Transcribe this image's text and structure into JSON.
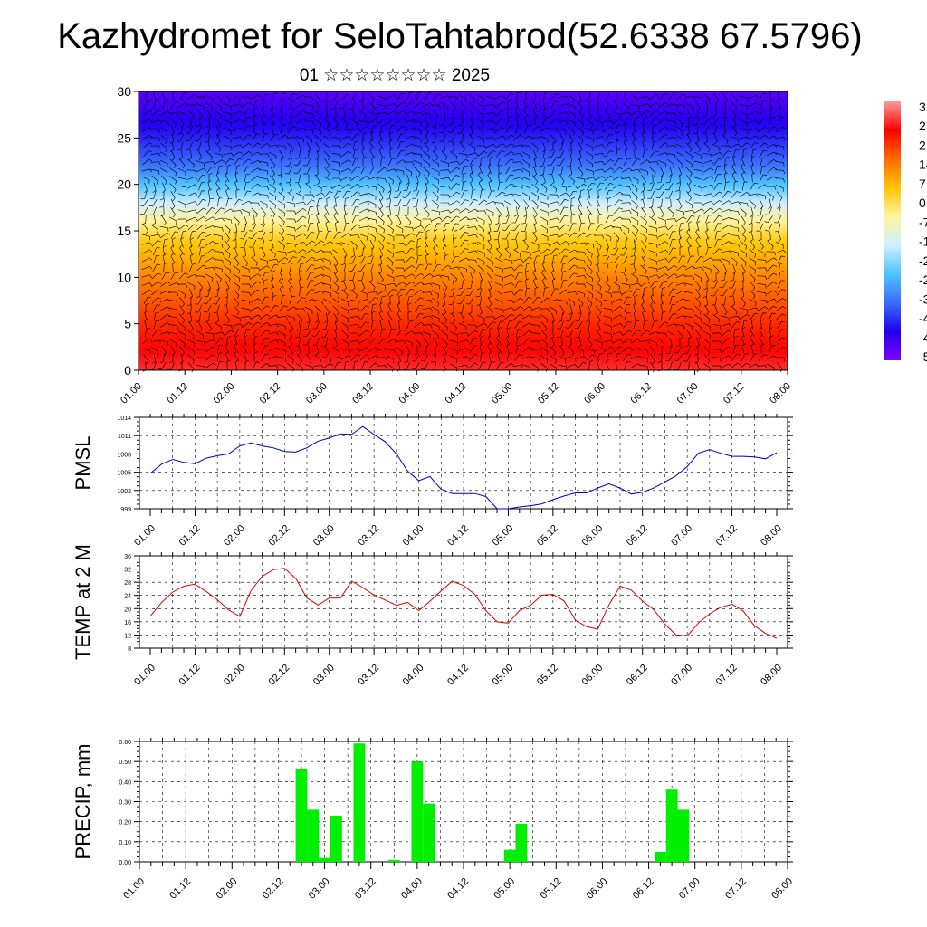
{
  "header": {
    "title": "Kazhydromet for SeloTahtabrod(52.6338 67.5796)",
    "subtitle": "01 ☆☆☆☆☆☆☆☆ 2025"
  },
  "colors": {
    "pmsl_line": "#0000cc",
    "temp_line": "#dd0000",
    "precip_bar": "#00ee00",
    "wind_barb": "#000000",
    "temperature_palette": [
      "#ff9999",
      "#ff0000",
      "#ff6a00",
      "#ffc400",
      "#fff4a0",
      "#cfefff",
      "#4fc3ff",
      "#3a6cff",
      "#2000f0",
      "#8000ff"
    ]
  },
  "chart_data": [
    {
      "type": "heatmap",
      "description_kind": "vertical cross-section of temperature with wind barbs",
      "x_tick_labels": [
        "01.00",
        "01.12",
        "02.00",
        "02.12",
        "03.00",
        "03.12",
        "04.00",
        "04.12",
        "05.00",
        "05.12",
        "06.00",
        "06.12",
        "07.00",
        "07.12",
        "08.00"
      ],
      "y_ticks": [
        0,
        5,
        10,
        15,
        20,
        25,
        30
      ],
      "ylim": [
        0,
        30
      ],
      "colorbar_labels": [
        "3",
        "2",
        "2",
        "14",
        "7",
        "0",
        "-7",
        "-1",
        "-2",
        "-2",
        "-3",
        "-4",
        "-4",
        "-5"
      ],
      "colorbar_range": [
        -56,
        35
      ],
      "field_profile": [
        {
          "level": 0,
          "value": 28
        },
        {
          "level": 5,
          "value": 21
        },
        {
          "level": 10,
          "value": 12
        },
        {
          "level": 14,
          "value": 3
        },
        {
          "level": 16.5,
          "value": -7
        },
        {
          "level": 19,
          "value": -21
        },
        {
          "level": 22,
          "value": -35
        },
        {
          "level": 26,
          "value": -45
        },
        {
          "level": 30,
          "value": -52
        }
      ]
    },
    {
      "type": "line",
      "ylabel": "PMSL",
      "x_tick_labels": [
        "01.00",
        "01.12",
        "02.00",
        "02.12",
        "03.00",
        "03.12",
        "04.00",
        "04.12",
        "05.00",
        "05.12",
        "06.00",
        "06.12",
        "07.00",
        "07.12",
        "08.00"
      ],
      "y_ticks": [
        999,
        1002,
        1005,
        1008,
        1011,
        1014
      ],
      "ylim": [
        999,
        1014
      ],
      "grid": true,
      "series": [
        {
          "x": [
            0,
            3,
            6,
            9,
            12,
            15,
            18,
            21,
            24,
            27,
            30,
            33,
            36,
            39,
            42,
            45,
            48,
            51,
            54,
            57,
            60,
            63,
            66,
            69,
            72,
            75,
            78,
            81,
            84,
            87,
            90,
            93,
            96,
            99,
            102,
            105,
            108,
            111,
            114,
            117,
            120,
            123,
            126,
            129,
            132,
            135,
            138,
            141,
            144,
            147,
            150,
            153,
            156,
            159,
            162,
            165,
            168
          ],
          "values": [
            1004.8,
            1006.3,
            1007.1,
            1006.6,
            1006.4,
            1007.3,
            1007.7,
            1008.0,
            1009.3,
            1009.8,
            1009.3,
            1009.0,
            1008.4,
            1008.3,
            1009.0,
            1010.1,
            1010.6,
            1011.3,
            1011.2,
            1012.5,
            1011.2,
            1010.0,
            1008.0,
            1005.2,
            1003.6,
            1004.3,
            1002.2,
            1001.5,
            1001.5,
            1001.5,
            1001.0,
            999.0,
            999.0,
            999.3,
            999.5,
            999.8,
            1000.5,
            1001.1,
            1001.6,
            1001.6,
            1002.4,
            1003.1,
            1002.4,
            1001.4,
            1001.7,
            1002.4,
            1003.4,
            1004.4,
            1005.9,
            1008.1,
            1008.7,
            1008.1,
            1007.6,
            1007.6,
            1007.5,
            1007.2,
            1008.2
          ]
        }
      ]
    },
    {
      "type": "line",
      "ylabel": "TEMP at 2 M",
      "x_tick_labels": [
        "01.00",
        "01.12",
        "02.00",
        "02.12",
        "03.00",
        "03.12",
        "04.00",
        "04.12",
        "05.00",
        "05.12",
        "06.00",
        "06.12",
        "07.00",
        "07.12",
        "08.00"
      ],
      "y_ticks": [
        8,
        12,
        16,
        20,
        24,
        28,
        32,
        36
      ],
      "ylim": [
        8,
        36
      ],
      "grid": true,
      "series": [
        {
          "x": [
            0,
            3,
            6,
            9,
            12,
            15,
            18,
            21,
            24,
            27,
            30,
            33,
            36,
            39,
            42,
            45,
            48,
            51,
            54,
            57,
            60,
            63,
            66,
            69,
            72,
            75,
            78,
            81,
            84,
            87,
            90,
            93,
            96,
            99,
            102,
            105,
            108,
            111,
            114,
            117,
            120,
            123,
            126,
            129,
            132,
            135,
            138,
            141,
            144,
            147,
            150,
            153,
            156,
            159,
            162,
            165,
            168
          ],
          "values": [
            17.7,
            21.8,
            25.0,
            26.8,
            27.4,
            25.2,
            22.7,
            19.6,
            17.6,
            25.4,
            29.8,
            31.8,
            32.2,
            29.2,
            23.2,
            21.1,
            23.2,
            23.2,
            28.3,
            26.4,
            24.1,
            22.6,
            21.0,
            21.9,
            19.4,
            22.2,
            25.4,
            28.3,
            27.0,
            24.4,
            19.4,
            16.0,
            15.6,
            19.4,
            21.0,
            24.1,
            24.3,
            22.3,
            16.5,
            14.5,
            13.8,
            21.1,
            26.8,
            25.6,
            22.3,
            19.7,
            15.3,
            12.0,
            11.7,
            15.6,
            18.4,
            20.4,
            21.3,
            19.3,
            14.8,
            12.5,
            11.0
          ]
        }
      ]
    },
    {
      "type": "bar",
      "ylabel": "PRECIP, mm",
      "x_tick_labels": [
        "01.00",
        "01.12",
        "02.00",
        "02.12",
        "03.00",
        "03.12",
        "04.00",
        "04.12",
        "05.00",
        "05.12",
        "06.00",
        "06.12",
        "07.00",
        "07.12",
        "08.00"
      ],
      "y_tick_labels": [
        "0.00",
        "0.10",
        "0.20",
        "0.30",
        "0.40",
        "0.50",
        "0.60"
      ],
      "ylim": [
        0,
        0.6
      ],
      "grid": true,
      "bars": [
        {
          "x": 42,
          "value": 0.46
        },
        {
          "x": 45,
          "value": 0.26
        },
        {
          "x": 48,
          "value": 0.02
        },
        {
          "x": 51,
          "value": 0.23
        },
        {
          "x": 57,
          "value": 0.59
        },
        {
          "x": 66,
          "value": 0.01
        },
        {
          "x": 72,
          "value": 0.5
        },
        {
          "x": 75,
          "value": 0.29
        },
        {
          "x": 96,
          "value": 0.06
        },
        {
          "x": 99,
          "value": 0.19
        },
        {
          "x": 135,
          "value": 0.05
        },
        {
          "x": 138,
          "value": 0.36
        },
        {
          "x": 141,
          "value": 0.26
        }
      ]
    }
  ]
}
